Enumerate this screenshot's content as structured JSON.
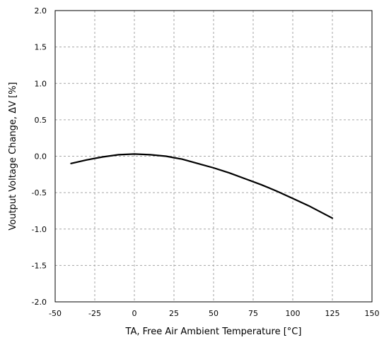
{
  "chart_data": {
    "type": "line",
    "title": "",
    "xlabel": "TA, Free Air Ambient Temperature [°C]",
    "ylabel": "Voutput Voltage Change, ΔV [%]",
    "xlim": [
      -50,
      150
    ],
    "ylim": [
      -2.0,
      2.0
    ],
    "x_ticks": [
      -50,
      -25,
      0,
      25,
      50,
      75,
      100,
      125,
      150
    ],
    "y_ticks": [
      -2.0,
      -1.5,
      -1.0,
      -0.5,
      0.0,
      0.5,
      1.0,
      1.5,
      2.0
    ],
    "x_tick_labels": [
      "-50",
      "-25",
      "0",
      "25",
      "50",
      "75",
      "100",
      "125",
      "150"
    ],
    "y_tick_labels": [
      "-2.0",
      "-1.5",
      "-1.0",
      "-0.5",
      "0.0",
      "0.5",
      "1.0",
      "1.5",
      "2.0"
    ],
    "grid": true,
    "series": [
      {
        "color": "#000000",
        "x": [
          -40,
          -30,
          -20,
          -10,
          0,
          10,
          20,
          30,
          40,
          50,
          60,
          70,
          80,
          90,
          100,
          110,
          125
        ],
        "y": [
          -0.1,
          -0.05,
          -0.01,
          0.02,
          0.03,
          0.02,
          0.0,
          -0.04,
          -0.1,
          -0.16,
          -0.23,
          -0.31,
          -0.39,
          -0.48,
          -0.58,
          -0.68,
          -0.85
        ]
      }
    ]
  }
}
